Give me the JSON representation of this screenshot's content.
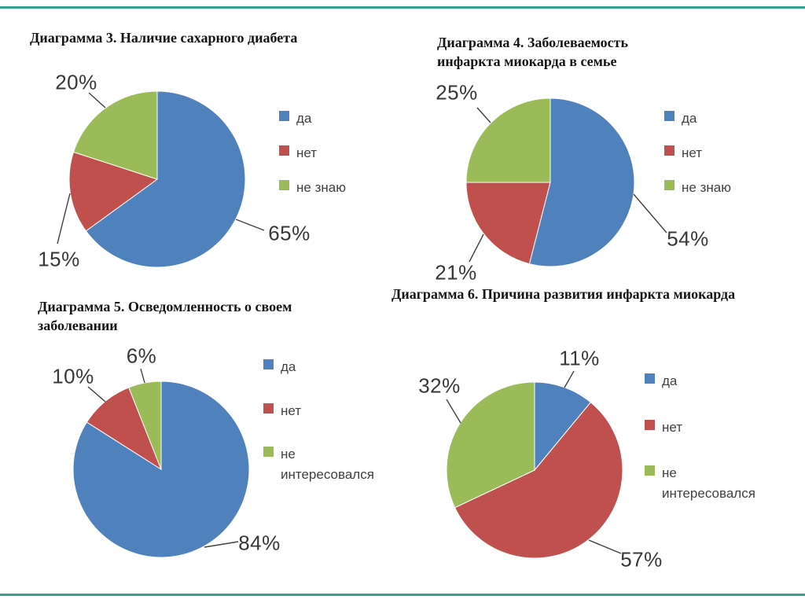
{
  "page": {
    "background": "#ffffff",
    "accent_line_color": "#35a08e"
  },
  "palette": {
    "blue": "#4f81bd",
    "red": "#c0504d",
    "green": "#9bbb59"
  },
  "chart_data": [
    {
      "type": "pie",
      "title": "Диаграмма 3. Наличие сахарного диабета",
      "categories": [
        "да",
        "нет",
        "не знаю"
      ],
      "values": [
        65,
        15,
        20
      ],
      "value_labels": [
        "65%",
        "15%",
        "20%"
      ],
      "colors": [
        "#4f81bd",
        "#c0504d",
        "#9bbb59"
      ],
      "unit": "%",
      "start_angle_deg": 0,
      "direction": "clockwise",
      "legend_position": "right"
    },
    {
      "type": "pie",
      "title": "Диаграмма 4. Заболеваемость инфаркта миокарда в семье",
      "categories": [
        "да",
        "нет",
        "не знаю"
      ],
      "values": [
        54,
        21,
        25
      ],
      "value_labels": [
        "54%",
        "21%",
        "25%"
      ],
      "colors": [
        "#4f81bd",
        "#c0504d",
        "#9bbb59"
      ],
      "unit": "%",
      "start_angle_deg": 0,
      "direction": "clockwise",
      "legend_position": "right"
    },
    {
      "type": "pie",
      "title": "Диаграмма 5. Осведомленность о своем заболевании",
      "categories": [
        "да",
        "нет",
        "не интересовался"
      ],
      "values": [
        84,
        10,
        6
      ],
      "value_labels": [
        "84%",
        "10%",
        "6%"
      ],
      "colors": [
        "#4f81bd",
        "#c0504d",
        "#9bbb59"
      ],
      "unit": "%",
      "start_angle_deg": 0,
      "direction": "clockwise",
      "legend_position": "right"
    },
    {
      "type": "pie",
      "title": "Диаграмма 6. Причина развития инфаркта миокарда",
      "categories": [
        "да",
        "нет",
        "не интересовался"
      ],
      "values": [
        11,
        57,
        32
      ],
      "value_labels": [
        "11%",
        "57%",
        "32%"
      ],
      "colors": [
        "#4f81bd",
        "#c0504d",
        "#9bbb59"
      ],
      "unit": "%",
      "start_angle_deg": 0,
      "direction": "clockwise",
      "legend_position": "right"
    }
  ]
}
